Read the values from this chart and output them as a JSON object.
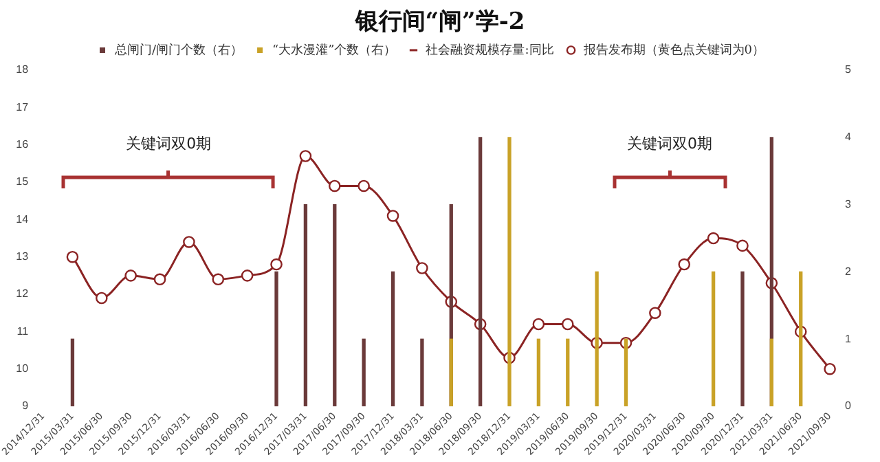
{
  "chart_data": {
    "type": "bar",
    "title": "银行间“闸”学-2",
    "categories": [
      "2014/12/31",
      "2015/03/31",
      "2015/06/30",
      "2015/09/30",
      "2015/12/31",
      "2016/03/31",
      "2016/06/30",
      "2016/09/30",
      "2016/12/31",
      "2017/03/31",
      "2017/06/30",
      "2017/09/30",
      "2017/12/31",
      "2018/03/31",
      "2018/06/30",
      "2018/09/30",
      "2018/12/31",
      "2019/03/31",
      "2019/06/30",
      "2019/09/30",
      "2019/12/31",
      "2020/03/31",
      "2020/06/30",
      "2020/09/30",
      "2020/12/31",
      "2021/03/31",
      "2021/06/30",
      "2021/09/30"
    ],
    "series": [
      {
        "name": "总闸门/闸门个数（右）",
        "axis": "y2",
        "color": "#6b3a3a",
        "values": [
          null,
          1,
          null,
          null,
          null,
          null,
          null,
          null,
          2,
          3,
          3,
          1,
          2,
          1,
          3,
          4,
          null,
          null,
          null,
          null,
          null,
          null,
          null,
          null,
          2,
          4,
          null,
          null
        ]
      },
      {
        "name": "“大水漫灌”个数（右）",
        "axis": "y2",
        "color": "#c9a227",
        "values": [
          null,
          null,
          null,
          null,
          null,
          null,
          null,
          null,
          null,
          null,
          null,
          null,
          null,
          null,
          1,
          null,
          4,
          1,
          1,
          2,
          1,
          null,
          null,
          2,
          null,
          1,
          2,
          null
        ]
      },
      {
        "name": "社会融资规模存量:同比",
        "type": "line",
        "color": "#8b2323",
        "marker": "none",
        "values": [
          null,
          13.0,
          11.9,
          12.5,
          12.4,
          13.4,
          12.4,
          12.5,
          12.8,
          15.7,
          14.9,
          14.9,
          14.1,
          12.7,
          11.8,
          11.2,
          10.3,
          11.2,
          11.2,
          10.7,
          10.7,
          11.5,
          12.8,
          13.5,
          13.3,
          12.3,
          11.0,
          10.0
        ]
      },
      {
        "name": "报告发布期（黄色点关键词为0）",
        "type": "scatter",
        "color": "#8b2323",
        "marker": "circle",
        "values": [
          null,
          13.0,
          11.9,
          12.5,
          12.4,
          13.4,
          12.4,
          12.5,
          12.8,
          15.7,
          14.9,
          14.9,
          14.1,
          12.7,
          11.8,
          11.2,
          10.3,
          11.2,
          11.2,
          10.7,
          10.7,
          11.5,
          12.8,
          13.5,
          13.3,
          12.3,
          11.0,
          10.0
        ]
      }
    ],
    "ylim": [
      9,
      18
    ],
    "yticks": [
      9,
      10,
      11,
      12,
      13,
      14,
      15,
      16,
      17,
      18
    ],
    "y2lim": [
      0,
      5
    ],
    "y2ticks": [
      0,
      1,
      2,
      3,
      4,
      5
    ],
    "grid": false,
    "legend": "top",
    "annotations": [
      "关键词双0期",
      "关键词双0期"
    ]
  }
}
